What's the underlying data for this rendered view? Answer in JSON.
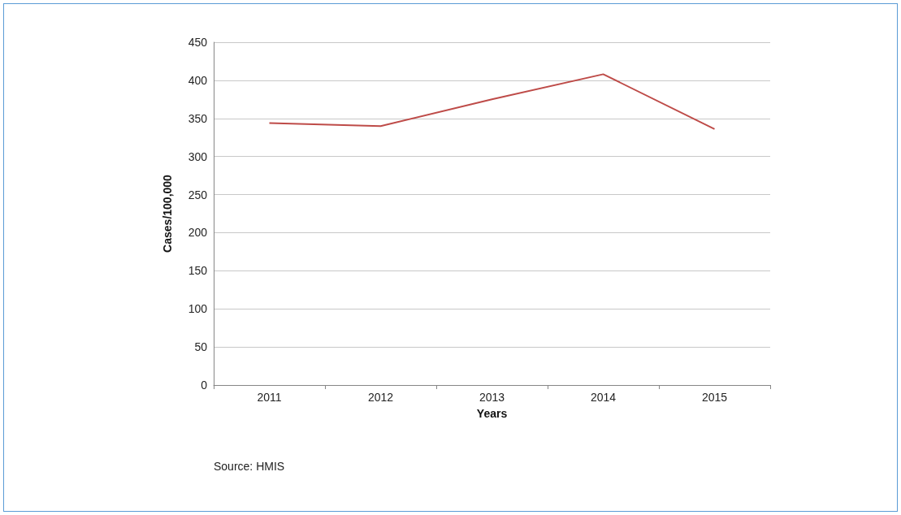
{
  "chart_data": {
    "type": "line",
    "xlabel": "Years",
    "ylabel": "Cases/100,000",
    "annotations": [
      "Source: HMIS"
    ],
    "categories": [
      "2011",
      "2012",
      "2013",
      "2014",
      "2015"
    ],
    "series": [
      {
        "color": "#be4b48",
        "values": [
          344,
          340,
          375,
          408,
          336
        ]
      }
    ],
    "ylim": [
      0,
      450
    ],
    "yticks": [
      0,
      50,
      100,
      150,
      200,
      250,
      300,
      350,
      400,
      450
    ],
    "grid": "y",
    "marker": "none",
    "line_style": "solid"
  }
}
